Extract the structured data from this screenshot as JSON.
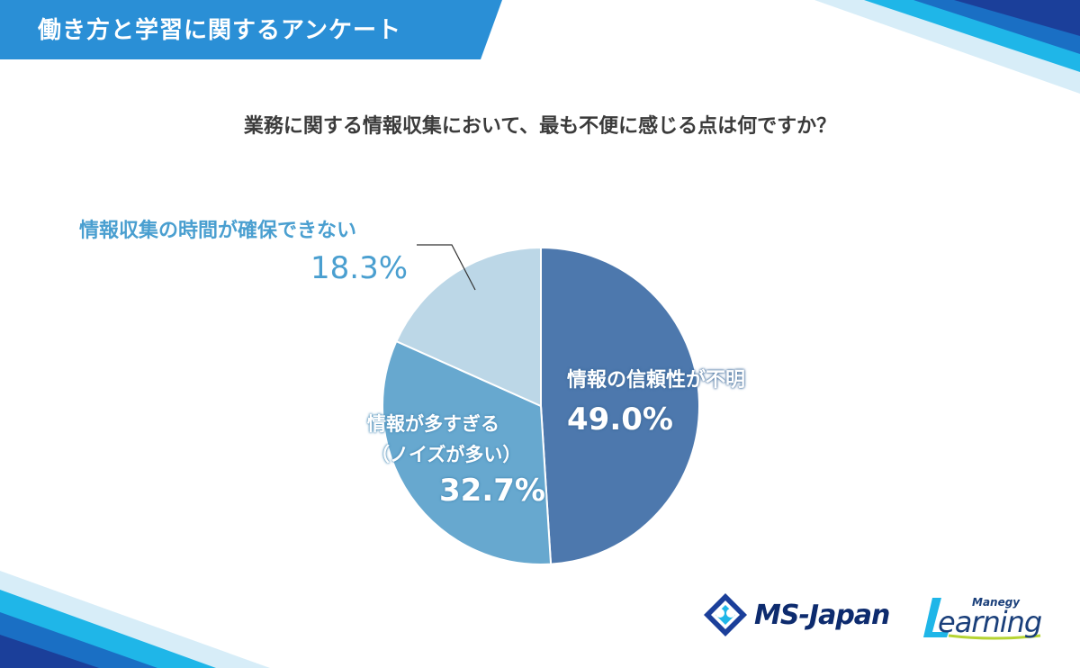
{
  "header": {
    "title": "働き方と学習に関するアンケート"
  },
  "question": "業務に関する情報収集において、最も不便に感じる点は何ですか？",
  "chart_data": {
    "type": "pie",
    "title": "業務に関する情報収集において、最も不便に感じる点は何ですか？",
    "slices": [
      {
        "label": "情報の信頼性が不明",
        "value": 49.0,
        "display": "49.0%",
        "color": "#4d78ad"
      },
      {
        "label": "情報が多すぎる（ノイズが多い）",
        "value": 32.7,
        "display": "32.7%",
        "color": "#67a8cf"
      },
      {
        "label": "情報収集の時間が確保できない",
        "value": 18.3,
        "display": "18.3%",
        "color": "#bcd7e7"
      }
    ]
  },
  "labels": {
    "slice_a": "情報の信頼性が不明",
    "slice_b_line1": "情報が多すぎる",
    "slice_b_line2": "（ノイズが多い）",
    "slice_c": "情報収集の時間が確保できない"
  },
  "logos": {
    "ms_japan": "MS-Japan",
    "manegy": "Manegy",
    "learning": "Learning"
  },
  "colors": {
    "header_blue": "#2a8fd6",
    "accent_cyan": "#1fb6e8",
    "navy": "#1a3f7a",
    "label_blue": "#4a9fd0"
  }
}
